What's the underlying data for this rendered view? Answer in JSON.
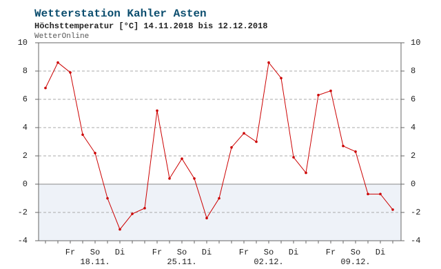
{
  "chart_data": {
    "type": "line",
    "title": "Wetterstation Kahler Asten",
    "subtitle": "Höchsttemperatur [°C] 14.11.2018 bis 12.12.2018",
    "source": "WetterOnline",
    "categories": [
      null,
      null,
      "Fr",
      null,
      "So",
      null,
      "Di",
      null,
      null,
      "Fr",
      null,
      "So",
      null,
      "Di",
      null,
      null,
      "Fr",
      null,
      "So",
      null,
      "Di",
      null,
      null,
      "Fr",
      null,
      "So",
      null,
      "Di",
      null
    ],
    "date_labels": [
      null,
      null,
      null,
      null,
      "18.11.",
      null,
      null,
      null,
      null,
      null,
      null,
      "25.11.",
      null,
      null,
      null,
      null,
      null,
      null,
      "02.12.",
      null,
      null,
      null,
      null,
      null,
      null,
      "09.12.",
      null,
      null,
      null
    ],
    "series": [
      {
        "color": "#cc0000",
        "values": [
          6.8,
          8.6,
          7.9,
          3.5,
          2.2,
          -1.0,
          -3.2,
          -2.1,
          -1.7,
          5.2,
          0.4,
          1.8,
          0.4,
          -2.4,
          -1.0,
          2.6,
          3.6,
          3.0,
          8.6,
          7.5,
          1.9,
          0.8,
          6.3,
          6.6,
          2.7,
          2.3,
          -0.7,
          -0.7,
          -1.8
        ]
      }
    ],
    "ylim": [
      -4,
      10
    ],
    "yticks": [
      -4,
      -2,
      0,
      2,
      4,
      6,
      8,
      10
    ],
    "grid": true,
    "negative_shading": "#eef2f8"
  }
}
